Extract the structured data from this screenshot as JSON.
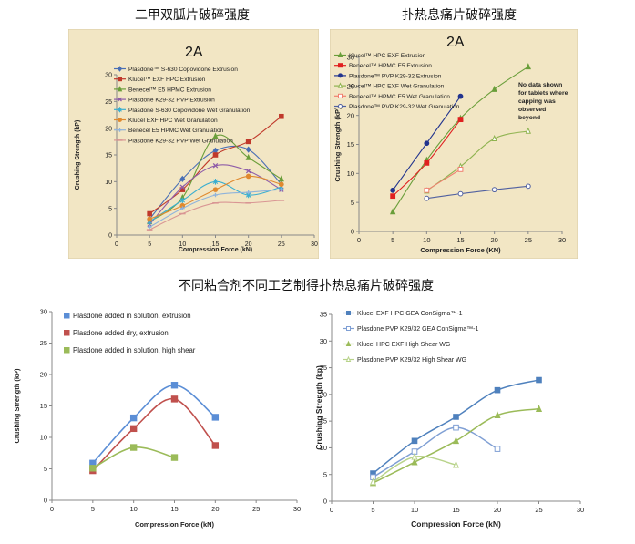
{
  "captions": {
    "top_left": "二甲双胍片破碎强度",
    "top_right": "扑热息痛片破碎强度",
    "middle": "不同粘合剂不同工艺制得扑热息痛片破碎强度"
  },
  "chart_data": [
    {
      "type": "line",
      "title": "2A",
      "xlabel": "Compression Force (kN)",
      "ylabel": "Crushing Strength (kP)",
      "xlim": [
        0,
        30
      ],
      "ylim": [
        0,
        30
      ],
      "xticks": [
        0,
        5,
        10,
        15,
        20,
        25,
        30
      ],
      "yticks": [
        0,
        5,
        10,
        15,
        20,
        25,
        30
      ],
      "background": "#f2e6c4",
      "legend_position": "top-left",
      "series": [
        {
          "name": "Plasdone™ S-630 Copovidone Extrusion",
          "color": "#4a6fb5",
          "marker": "diamond",
          "x": [
            5,
            10,
            15,
            20,
            25
          ],
          "y": [
            3.0,
            10.5,
            15.8,
            16.0,
            9.5
          ]
        },
        {
          "name": "Klucel™ EXF HPC Extrusion",
          "color": "#c0392b",
          "marker": "square",
          "x": [
            5,
            10,
            15,
            20,
            25
          ],
          "y": [
            4.0,
            8.5,
            15.0,
            17.5,
            22.2
          ]
        },
        {
          "name": "Benecel™ E5 HPMC Extrusion",
          "color": "#6a9e3a",
          "marker": "triangle",
          "x": [
            5,
            10,
            15,
            20,
            25
          ],
          "y": [
            2.5,
            7.0,
            18.5,
            14.5,
            10.5
          ]
        },
        {
          "name": "Plasdone K29-32 PVP Extrusion",
          "color": "#8e5ca8",
          "marker": "x",
          "x": [
            5,
            10,
            15,
            20,
            25
          ],
          "y": [
            2.0,
            9.0,
            13.0,
            12.0,
            8.5
          ]
        },
        {
          "name": "Plasdone S-630 Copovidone Wet Granulation",
          "color": "#3aaed0",
          "marker": "star",
          "x": [
            5,
            10,
            15,
            20,
            25
          ],
          "y": [
            2.5,
            6.5,
            10.0,
            7.5,
            9.0
          ]
        },
        {
          "name": "Klucel EXF HPC Wet Granulation",
          "color": "#e0892e",
          "marker": "circle",
          "x": [
            5,
            10,
            15,
            20,
            25
          ],
          "y": [
            3.0,
            5.5,
            8.5,
            11.0,
            9.5
          ]
        },
        {
          "name": "Benecel E5 HPMC Wet Granulation",
          "color": "#8fb3db",
          "marker": "plus",
          "x": [
            5,
            10,
            15,
            20,
            25
          ],
          "y": [
            1.5,
            5.0,
            7.5,
            8.0,
            8.5
          ]
        },
        {
          "name": "Plasdone K29-32 PVP Wet Granulation",
          "color": "#d99694",
          "marker": "dash",
          "x": [
            5,
            10,
            15,
            20,
            25
          ],
          "y": [
            1.0,
            4.0,
            6.0,
            6.0,
            6.5
          ]
        }
      ]
    },
    {
      "type": "line",
      "title": "2A",
      "xlabel": "Compression Force (KN)",
      "ylabel": "Crushing Strength (kP)",
      "xlim": [
        0,
        30
      ],
      "ylim": [
        0,
        30
      ],
      "xticks": [
        0,
        5,
        10,
        15,
        20,
        25,
        30
      ],
      "yticks": [
        0,
        5,
        10,
        15,
        20,
        25,
        30
      ],
      "background": "#f2e6c4",
      "legend_position": "top-left",
      "annotation": "No data shown\nfor tablets where\ncapping was\nobserved\nbeyond",
      "series": [
        {
          "name": "Klucel™ HPC EXF Extrusion",
          "color": "#6a9e3a",
          "marker": "triangle",
          "x": [
            5,
            10,
            15,
            20,
            25
          ],
          "y": [
            3.4,
            12.3,
            19.5,
            24.5,
            28.4
          ]
        },
        {
          "name": "Benecel™ HPMC E5 Extrusion",
          "color": "#e02020",
          "marker": "square",
          "x": [
            5,
            10,
            15
          ],
          "y": [
            6.1,
            11.8,
            19.3
          ]
        },
        {
          "name": "Plasdone™ PVP K29-32 Extrusion",
          "color": "#22348e",
          "marker": "circle",
          "x": [
            5,
            10,
            15
          ],
          "y": [
            7.1,
            15.2,
            23.3
          ]
        },
        {
          "name": "Klucel™ HPC EXF Wet Granulation",
          "color": "#8fb350",
          "marker": "triangle-open",
          "x": [
            10,
            15,
            20,
            25
          ],
          "y": [
            7.0,
            11.2,
            16.0,
            17.3
          ]
        },
        {
          "name": "Benecel™ HPMC E5 Wet Granulation",
          "color": "#f08070",
          "marker": "square-open",
          "x": [
            10,
            15
          ],
          "y": [
            7.1,
            10.7
          ]
        },
        {
          "name": "Plasdone™ PVP K29-32 Wet Granulation",
          "color": "#5060a0",
          "marker": "circle-open",
          "x": [
            10,
            15,
            20,
            25
          ],
          "y": [
            5.7,
            6.5,
            7.2,
            7.8
          ]
        }
      ]
    },
    {
      "type": "line",
      "title": "",
      "xlabel": "Compression Force (kN)",
      "ylabel": "Crushing Strength (kP)",
      "xlim": [
        0,
        30
      ],
      "ylim": [
        0,
        30
      ],
      "xticks": [
        0,
        5,
        10,
        15,
        20,
        25,
        30
      ],
      "yticks": [
        0,
        5,
        10,
        15,
        20,
        25,
        30
      ],
      "background": "#ffffff",
      "legend_position": "top-left",
      "series": [
        {
          "name": "Plasdone added in solution, extrusion",
          "color": "#5b8ed6",
          "marker": "square",
          "x": [
            5,
            10,
            15,
            20
          ],
          "y": [
            5.9,
            13.1,
            18.3,
            13.2
          ]
        },
        {
          "name": "Plasdone added dry, extrusion",
          "color": "#c0504d",
          "marker": "square",
          "x": [
            5,
            10,
            15,
            20
          ],
          "y": [
            4.7,
            11.4,
            16.1,
            8.7
          ]
        },
        {
          "name": "Plasdone added in solution, high shear",
          "color": "#9bbb59",
          "marker": "square",
          "x": [
            5,
            10,
            15
          ],
          "y": [
            5.1,
            8.4,
            6.8
          ]
        }
      ]
    },
    {
      "type": "line",
      "title": "",
      "xlabel": "Compression Force (kN)",
      "ylabel": "Crushing Strength (kp)",
      "xlim": [
        0,
        30
      ],
      "ylim": [
        0,
        35
      ],
      "xticks": [
        0,
        5,
        10,
        15,
        20,
        25,
        30
      ],
      "yticks": [
        0,
        5,
        10,
        15,
        20,
        25,
        30,
        35
      ],
      "background": "#ffffff",
      "legend_position": "top-left",
      "series": [
        {
          "name": "Klucel EXF HPC GEA ConSigma™-1",
          "color": "#4f81bd",
          "marker": "square",
          "x": [
            5,
            10,
            15,
            20,
            25
          ],
          "y": [
            5.2,
            11.3,
            15.8,
            20.8,
            22.7
          ]
        },
        {
          "name": "Plasdone PVP K29/32 GEA ConSigma™-1",
          "color": "#7f9fd4",
          "marker": "square-open",
          "x": [
            5,
            10,
            15,
            20
          ],
          "y": [
            4.5,
            9.3,
            13.8,
            9.8
          ]
        },
        {
          "name": "Klucel HPC EXF High Shear WG",
          "color": "#9bbb59",
          "marker": "triangle",
          "x": [
            5,
            10,
            15,
            20,
            25
          ],
          "y": [
            3.4,
            7.3,
            11.3,
            16.1,
            17.3
          ]
        },
        {
          "name": "Plasdone PVP K29/32 High Shear WG",
          "color": "#b8d38a",
          "marker": "triangle-open",
          "x": [
            5,
            10,
            15
          ],
          "y": [
            3.6,
            8.3,
            6.8
          ]
        }
      ]
    }
  ]
}
